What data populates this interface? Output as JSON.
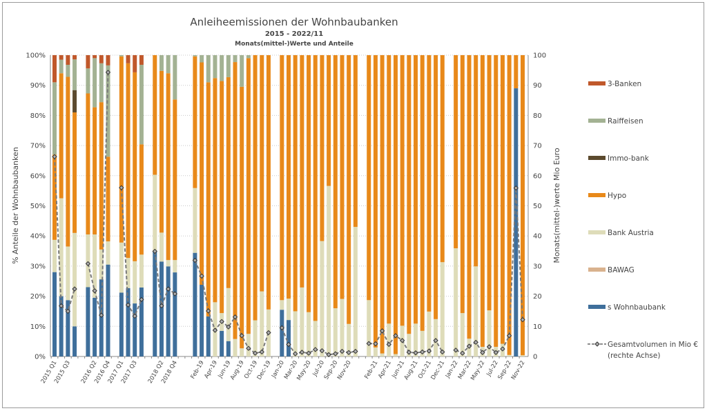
{
  "chart_data": {
    "type": "bar",
    "stacked": true,
    "title": "Anleiheemissionen der Wohnbaubanken",
    "subtitle": "2015 - 2022/11",
    "subtitle2": "Monats(mittel-)Werte und Anteile",
    "ylabel_left": "% Anteile der Wohnbaubanken",
    "ylabel_right": "Monats(mittel-)werte Mio Euro",
    "ylim_left": [
      0,
      100
    ],
    "ylim_right": [
      0,
      100
    ],
    "yticks_left": [
      "0%",
      "10%",
      "20%",
      "30%",
      "40%",
      "50%",
      "60%",
      "70%",
      "80%",
      "90%",
      "100%"
    ],
    "yticks_right": [
      "0",
      "10",
      "20",
      "30",
      "40",
      "50",
      "60",
      "70",
      "80",
      "90",
      "100"
    ],
    "grid": true,
    "legend_position": "right",
    "tick_labels": [
      "2015 Q1",
      "",
      "2015 Q3",
      "",
      "",
      "",
      "2016 Q2",
      "",
      "2016 Q4",
      "",
      "2017 Q1",
      "",
      "2017 Q3",
      "",
      "",
      "",
      "2018 Q2",
      "",
      "2018 Q4",
      "",
      "",
      "",
      "Feb-19",
      "",
      "Apr-19",
      "",
      "Jun-19",
      "",
      "Aug-19",
      "",
      "Oct-19",
      "",
      "Dec-19",
      "",
      "Jan-20",
      "",
      "Mar-20",
      "",
      "May-20",
      "",
      "Jul-20",
      "",
      "Sep-20",
      "",
      "Nov-20",
      "",
      "",
      "",
      "Feb-21",
      "",
      "Apr-21",
      "",
      "Jun-21",
      "",
      "Aug-21",
      "",
      "Oct-21",
      "",
      "Dec-21",
      "",
      "Jan-22",
      "",
      "Mar-22",
      "",
      "May-22",
      "",
      "Jul-22",
      "",
      "Sep-22",
      "",
      "Nov-22"
    ],
    "series": [
      {
        "name": "s Wohnbaubank",
        "color": "#3f6f9b",
        "values": [
          28,
          20,
          18.7,
          10,
          null,
          23,
          19.5,
          25.6,
          30.5,
          null,
          21.2,
          22.7,
          17.6,
          22.9,
          null,
          35.1,
          31.5,
          29.9,
          27.9,
          null,
          null,
          34.4,
          23.8,
          13.3,
          0,
          8.5,
          5.1,
          0,
          0,
          0,
          0,
          0,
          0,
          null,
          15.5,
          12.1,
          0,
          0,
          0,
          0,
          0,
          0,
          0,
          0,
          0,
          0,
          null,
          0,
          0,
          0,
          0,
          0,
          0,
          0,
          0,
          0,
          0,
          0,
          0,
          null,
          0,
          0,
          0,
          0,
          0,
          0,
          0,
          0,
          0,
          89,
          0
        ]
      },
      {
        "name": "BAWAG",
        "color": "#d9b28e",
        "values": [
          0,
          0,
          0,
          0,
          null,
          0,
          0,
          0,
          0,
          null,
          0,
          0,
          0,
          0,
          null,
          0,
          0,
          0,
          0,
          null,
          null,
          0,
          0,
          0,
          0,
          0,
          0,
          0,
          0,
          0,
          0,
          0,
          0,
          null,
          0,
          0,
          0,
          0,
          0,
          0,
          0,
          0,
          0,
          0,
          0,
          0,
          null,
          0,
          0,
          0,
          0,
          0,
          0,
          0,
          0,
          0,
          0,
          0,
          0,
          null,
          0,
          0,
          0,
          0,
          0,
          0,
          0,
          0,
          0,
          0,
          0
        ]
      },
      {
        "name": "Bank   Austria",
        "color": "#dedcb9",
        "values": [
          10.7,
          32.5,
          17.8,
          31,
          null,
          17.5,
          21,
          9.9,
          7.7,
          null,
          16.6,
          10,
          14,
          10.9,
          null,
          25.2,
          9.6,
          2.1,
          4.1,
          null,
          null,
          21.5,
          0,
          0,
          18,
          5.9,
          17.6,
          5.8,
          2.7,
          7.5,
          12,
          21.6,
          15.6,
          null,
          3.2,
          7.1,
          15,
          22.9,
          14.7,
          11.8,
          38.3,
          56.6,
          16,
          19.1,
          10.8,
          43,
          null,
          18.7,
          3,
          1,
          10.9,
          0.8,
          10.2,
          7.5,
          10.9,
          8.5,
          14.9,
          12.4,
          31.3,
          null,
          35.9,
          14.4,
          5.9,
          29.9,
          3.2,
          15.3,
          3.2,
          4.2,
          0.5,
          0,
          0.4
        ]
      },
      {
        "name": "Hypo",
        "color": "#e8891a",
        "values": [
          28.3,
          41.5,
          56.3,
          40,
          null,
          46.8,
          42.2,
          48.9,
          28.1,
          null,
          61.8,
          64.6,
          62.7,
          36.6,
          null,
          39.7,
          53.7,
          62,
          53.3,
          null,
          null,
          43.7,
          73.8,
          77.7,
          74.4,
          77,
          70,
          91.9,
          86.8,
          91.5,
          88,
          78.4,
          84.4,
          null,
          81.3,
          80.8,
          85,
          77.1,
          85.3,
          88.2,
          61.7,
          43.4,
          84,
          80.9,
          89.2,
          57,
          null,
          81.3,
          97,
          99,
          89.1,
          99.2,
          89.8,
          92.5,
          89.1,
          91.5,
          85.1,
          87.6,
          68.7,
          null,
          64.1,
          85.6,
          94.1,
          70.1,
          96.8,
          84.7,
          96.8,
          95.8,
          99.5,
          11,
          99.6
        ]
      },
      {
        "name": "Immo-bank",
        "color": "#5c4a2e",
        "values": [
          0,
          0,
          0,
          7.4,
          null,
          0,
          0,
          0,
          0,
          null,
          0,
          0,
          0,
          0,
          null,
          0,
          0,
          0,
          0,
          null,
          null,
          0,
          0,
          0,
          0,
          0,
          0,
          0,
          0,
          0,
          0,
          0,
          0,
          null,
          0,
          0,
          0,
          0,
          0,
          0,
          0,
          0,
          0,
          0,
          0,
          0,
          null,
          0,
          0,
          0,
          0,
          0,
          0,
          0,
          0,
          0,
          0,
          0,
          0,
          null,
          0,
          0,
          0,
          0,
          0,
          0,
          0,
          0,
          0,
          0,
          0
        ]
      },
      {
        "name": "Raiffeisen",
        "color": "#a3b293",
        "values": [
          24,
          4.5,
          4,
          10.2,
          null,
          8.3,
          16.3,
          12.9,
          30.3,
          null,
          0.4,
          0,
          0,
          26.4,
          null,
          0,
          5.2,
          6,
          14.7,
          null,
          null,
          0.4,
          2.4,
          9,
          7.6,
          8.6,
          7.3,
          2.3,
          10.5,
          1,
          0,
          0,
          0,
          null,
          0,
          0,
          0,
          0,
          0,
          0,
          0,
          0,
          0,
          0,
          0,
          0,
          null,
          0,
          0,
          0,
          0,
          0,
          0,
          0,
          0,
          0,
          0,
          0,
          0,
          null,
          0,
          0,
          0,
          0,
          0,
          0,
          0,
          0,
          0,
          0,
          0
        ]
      },
      {
        "name": "3-Banken",
        "color": "#c0582b",
        "values": [
          9,
          1.5,
          3.2,
          1.4,
          null,
          4.4,
          1,
          2.7,
          3.4,
          null,
          0,
          2.7,
          5.7,
          3.2,
          null,
          0,
          0,
          0,
          0,
          null,
          null,
          0,
          0,
          0,
          0,
          0,
          0,
          0,
          0,
          0,
          0,
          0,
          0,
          null,
          0,
          0,
          0,
          0,
          0,
          0,
          0,
          0,
          0,
          0,
          0,
          0,
          null,
          0,
          0,
          0,
          0,
          0,
          0,
          0,
          0,
          0,
          0,
          0,
          0,
          null,
          0,
          0,
          0,
          0,
          0,
          0,
          0,
          0,
          0,
          0,
          0
        ]
      }
    ],
    "line": {
      "name": "Gesamtvolumen in Mio €",
      "name2": "(rechte Achse)",
      "axis": "right",
      "color": "#7a7a7a",
      "values": [
        66.3,
        16.8,
        15,
        22.4,
        null,
        30.8,
        21.8,
        13.7,
        94.3,
        null,
        56,
        17.1,
        13.4,
        18.9,
        null,
        34.9,
        16.8,
        22.4,
        20.8,
        null,
        null,
        31.9,
        26.7,
        15.1,
        8.7,
        11.6,
        9.8,
        13.1,
        6.9,
        2.7,
        1.1,
        1.5,
        7.9,
        null,
        9.5,
        4,
        0.9,
        1.4,
        1.1,
        2.3,
        1.9,
        0.6,
        0.9,
        1.7,
        1.3,
        1.7,
        null,
        4.3,
        4.2,
        8.5,
        4,
        6.9,
        5.3,
        1.4,
        1.2,
        1.5,
        1.8,
        5.3,
        1.5,
        null,
        2.1,
        1.1,
        3.4,
        4.7,
        1.3,
        3.2,
        1.3,
        2.5,
        6.9,
        55.9,
        12.2
      ]
    }
  }
}
